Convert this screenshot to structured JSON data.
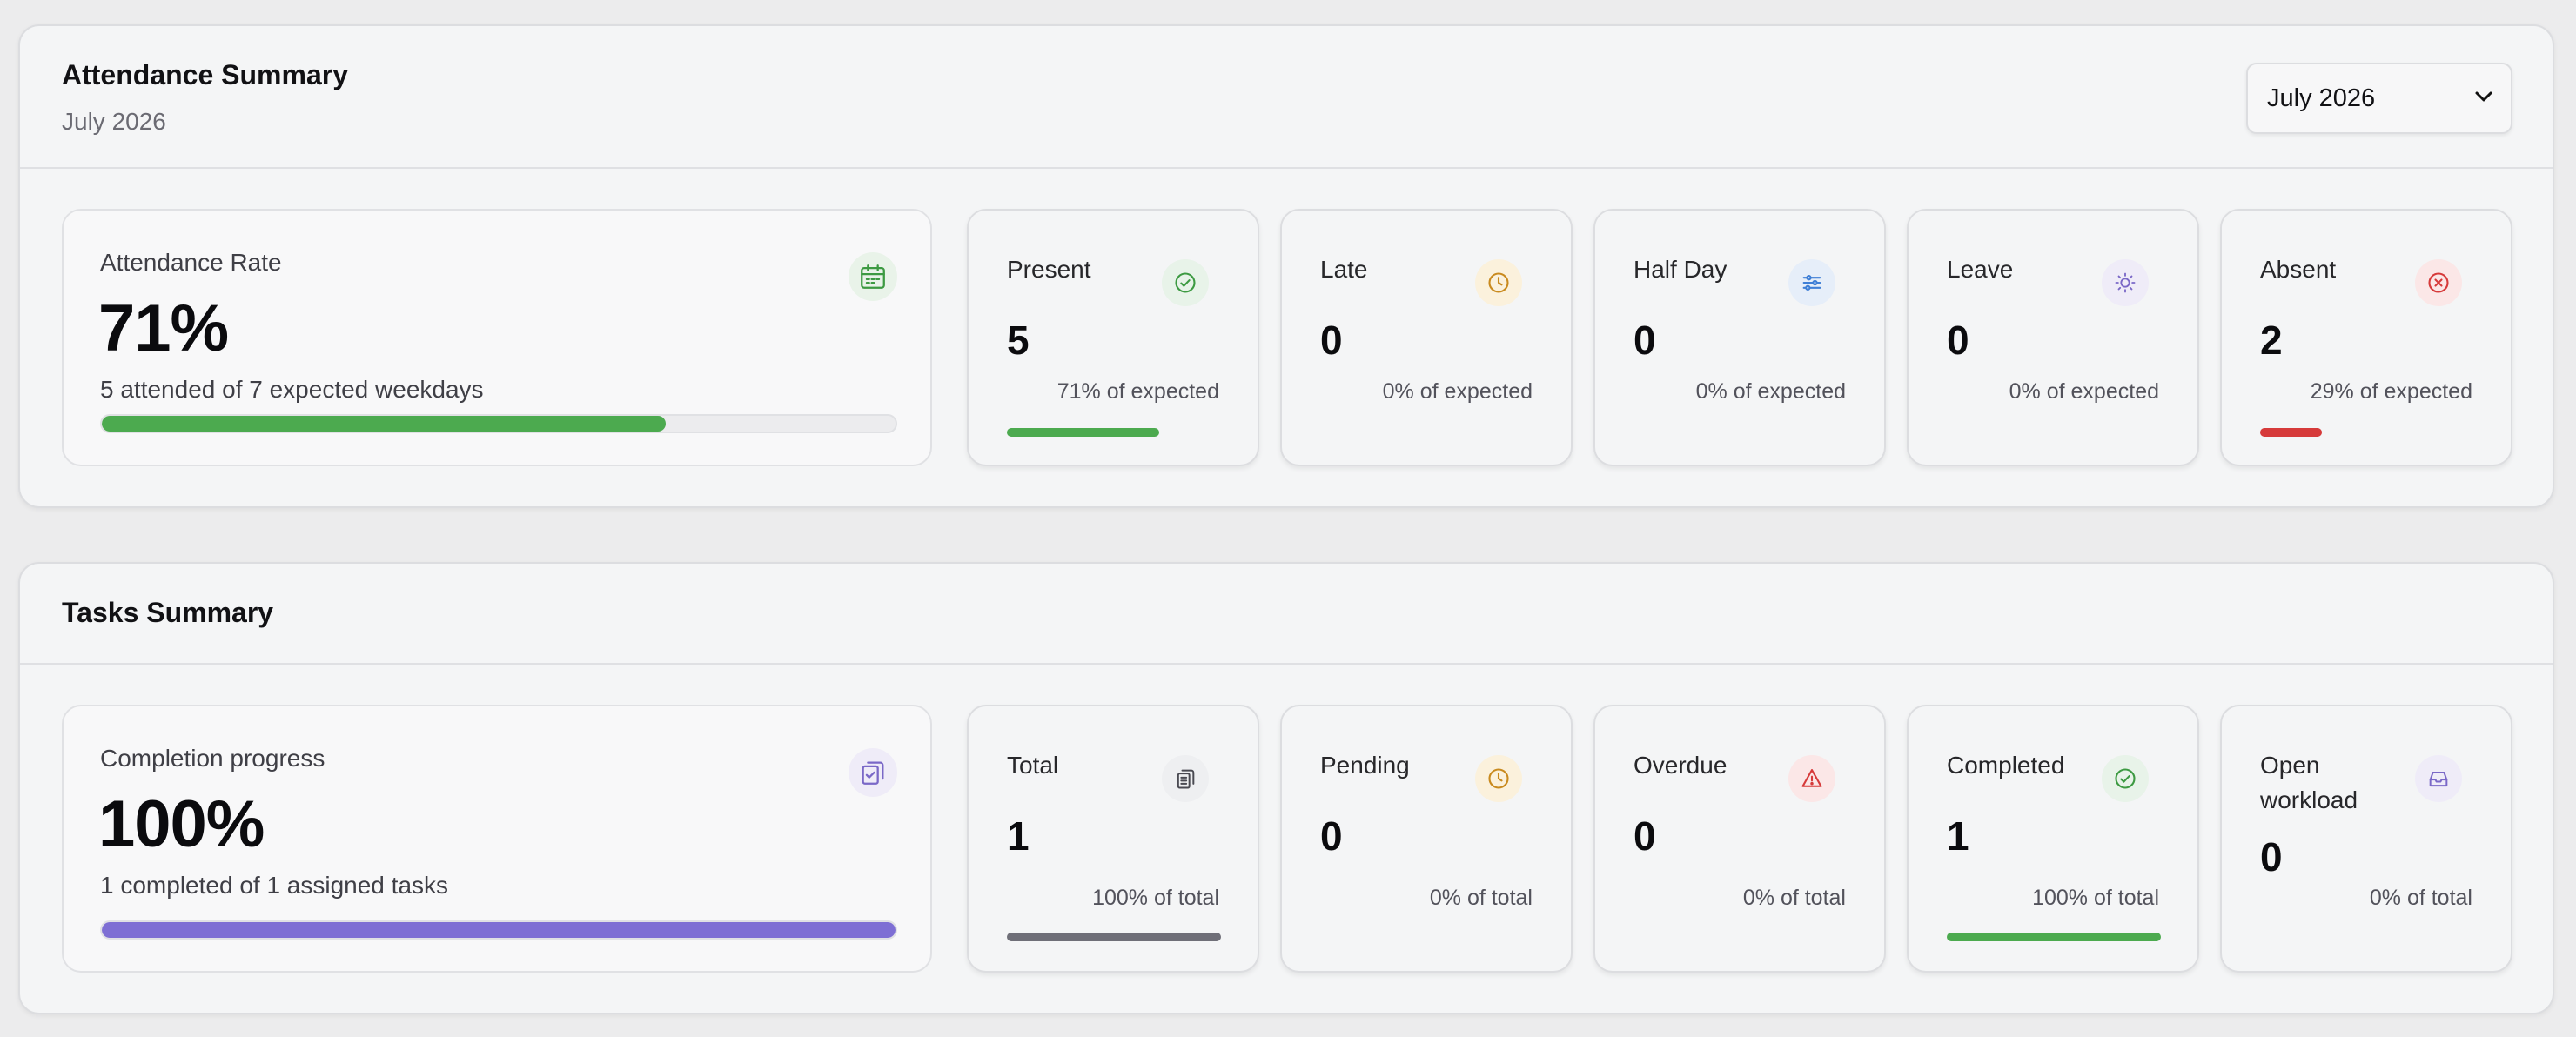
{
  "attendance": {
    "title": "Attendance Summary",
    "subtitle": "July 2026",
    "month_select": {
      "value": "July 2026"
    },
    "rate": {
      "label": "Attendance Rate",
      "value": "71%",
      "caption": "5 attended of 7 expected weekdays",
      "progress": 0.71,
      "color": "#4caa4f",
      "icon": "calendar-icon"
    },
    "stats": [
      {
        "label": "Present",
        "value": "5",
        "caption": "71% of expected",
        "progress": 0.71,
        "color": "#4caa4f",
        "icon": "check-circle-icon"
      },
      {
        "label": "Late",
        "value": "0",
        "caption": "0% of expected",
        "progress": 0,
        "color": "#d79a2b",
        "icon": "clock-icon"
      },
      {
        "label": "Half Day",
        "value": "0",
        "caption": "0% of expected",
        "progress": 0,
        "color": "#3f7fd6",
        "icon": "sliders-icon"
      },
      {
        "label": "Leave",
        "value": "0",
        "caption": "0% of expected",
        "progress": 0,
        "color": "#7a68c7",
        "icon": "sun-icon"
      },
      {
        "label": "Absent",
        "value": "2",
        "caption": "29% of expected",
        "progress": 0.29,
        "color": "#d63a3a",
        "icon": "x-circle-icon"
      }
    ]
  },
  "tasks": {
    "title": "Tasks Summary",
    "completion": {
      "label": "Completion progress",
      "value": "100%",
      "caption": "1 completed of 1 assigned tasks",
      "progress": 1.0,
      "color": "#7e6fd4",
      "icon": "clipboard-check-icon"
    },
    "stats": [
      {
        "label": "Total",
        "value": "1",
        "caption": "100% of total",
        "progress": 1.0,
        "color": "#6f6f78",
        "icon": "clipboard-icon"
      },
      {
        "label": "Pending",
        "value": "0",
        "caption": "0% of total",
        "progress": 0,
        "color": "#d79a2b",
        "icon": "clock-icon"
      },
      {
        "label": "Overdue",
        "value": "0",
        "caption": "0% of total",
        "progress": 0,
        "color": "#d63a3a",
        "icon": "warning-icon"
      },
      {
        "label": "Completed",
        "value": "1",
        "caption": "100% of total",
        "progress": 1.0,
        "color": "#4caa4f",
        "icon": "check-circle-icon"
      },
      {
        "label": "Open workload",
        "value": "0",
        "caption": "0% of total",
        "progress": 0,
        "color": "#7a68c7",
        "icon": "inbox-icon"
      }
    ]
  }
}
